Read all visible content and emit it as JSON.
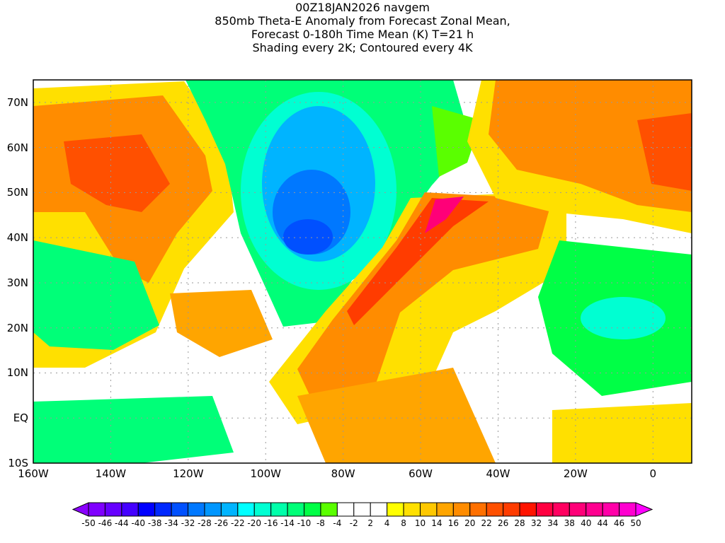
{
  "title": {
    "line1": "00Z18JAN2026 navgem",
    "line2": "850mb Theta-E Anomaly from Forecast Zonal Mean,",
    "line3": "Forecast 0-180h Time Mean (K) T=21 h",
    "line4": "Shading every 2K; Contoured every 4K"
  },
  "axes": {
    "lat_labels": [
      "70N",
      "60N",
      "50N",
      "40N",
      "30N",
      "20N",
      "10N",
      "EQ",
      "10S"
    ],
    "lat_values": [
      70,
      60,
      50,
      40,
      30,
      20,
      10,
      0,
      -10
    ],
    "lon_labels": [
      "160W",
      "140W",
      "120W",
      "100W",
      "80W",
      "60W",
      "40W",
      "20W",
      "0"
    ],
    "lon_values": [
      -160,
      -140,
      -120,
      -100,
      -80,
      -60,
      -40,
      -20,
      0
    ],
    "lon_range": [
      -160,
      10
    ],
    "lat_range": [
      -10,
      75
    ]
  },
  "colorbar": {
    "labels": [
      "-50",
      "-46",
      "-44",
      "-40",
      "-38",
      "-34",
      "-32",
      "-28",
      "-26",
      "-22",
      "-20",
      "-16",
      "-14",
      "-10",
      "-8",
      "-4",
      "-2",
      "2",
      "4",
      "8",
      "10",
      "14",
      "16",
      "20",
      "22",
      "26",
      "28",
      "32",
      "34",
      "38",
      "40",
      "44",
      "46",
      "50"
    ],
    "colors": [
      "#7f00ff",
      "#6600ff",
      "#4400ff",
      "#0000ff",
      "#0028ff",
      "#0050ff",
      "#0078ff",
      "#0096ff",
      "#00b4ff",
      "#00ffff",
      "#00ffd2",
      "#00ffaa",
      "#00ff78",
      "#00ff46",
      "#5aff00",
      "#ffffff",
      "#ffffff",
      "#ffffff",
      "#ffff00",
      "#ffe000",
      "#ffc800",
      "#ffa500",
      "#ff8c00",
      "#ff7000",
      "#ff5000",
      "#ff3c00",
      "#ff1400",
      "#ff0040",
      "#ff0060",
      "#ff0078",
      "#ff0090",
      "#ff00a8",
      "#ff00d0"
    ],
    "low_arrow_color": "#8a00ff",
    "high_arrow_color": "#ff00ff"
  }
}
